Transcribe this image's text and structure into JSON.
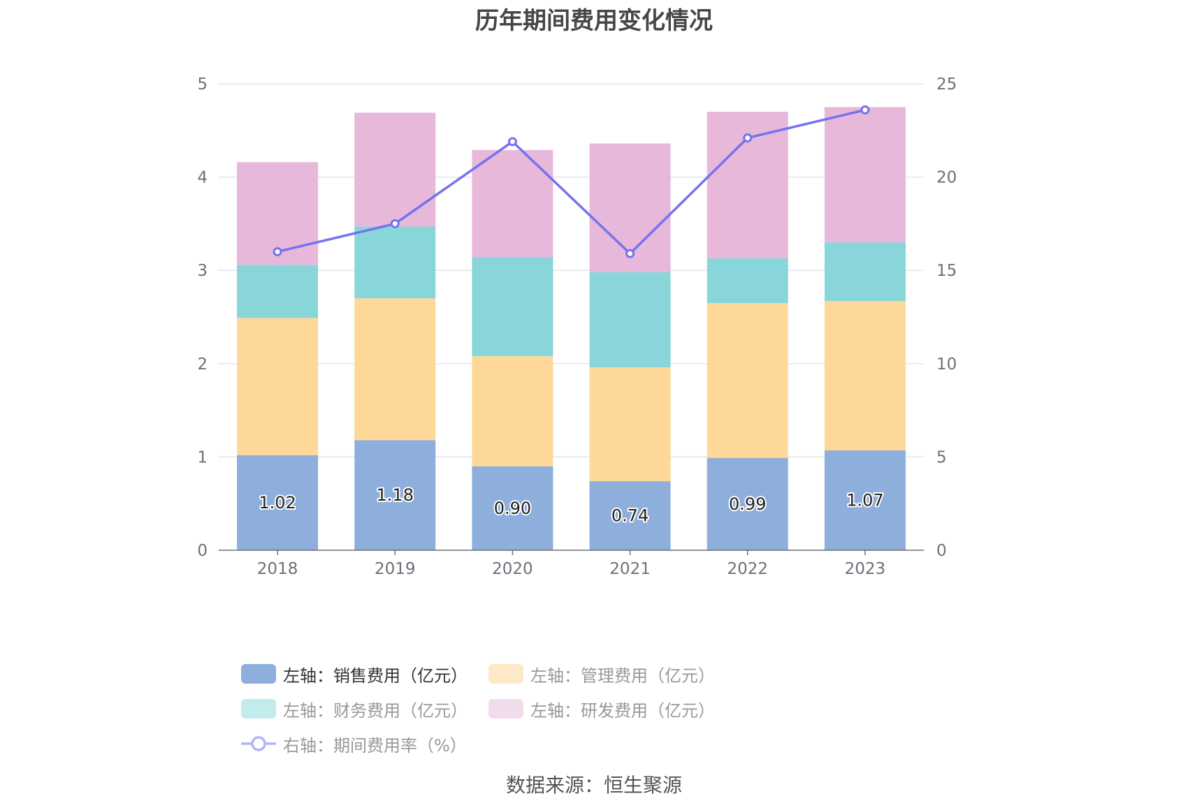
{
  "title": "历年期间费用变化情况",
  "source": "数据来源：恒生聚源",
  "colors": {
    "sales": "#8eaedc",
    "admin": "#fed899",
    "finance": "#88d6d9",
    "rnd": "#e7b8d9",
    "rate_line": "#7373f0",
    "grid": "#e0e3f3",
    "axis": "#6e7079"
  },
  "legend": [
    {
      "label": "左轴：销售费用（亿元）",
      "color": "#8eaedc",
      "faded": false,
      "kind": "box"
    },
    {
      "label": "左轴：管理费用（亿元）",
      "color": "#fde9c8",
      "faded": true,
      "kind": "box"
    },
    {
      "label": "左轴：财务费用（亿元）",
      "color": "#c2ebec",
      "faded": true,
      "kind": "box"
    },
    {
      "label": "左轴：研发费用（亿元）",
      "color": "#f1dcec",
      "faded": true,
      "kind": "box"
    },
    {
      "label": "右轴：期间费用率（%）",
      "color": "#b5b5f5",
      "faded": true,
      "kind": "line"
    }
  ],
  "chart_data": {
    "type": "bar",
    "stacked": true,
    "categories": [
      "2018",
      "2019",
      "2020",
      "2021",
      "2022",
      "2023"
    ],
    "series": [
      {
        "key": "sales",
        "name": "左轴：销售费用（亿元）",
        "axis": "left",
        "color": "#8eaedc",
        "values": [
          1.02,
          1.18,
          0.9,
          0.74,
          0.99,
          1.07
        ],
        "labels": [
          "1.02",
          "1.18",
          "0.90",
          "0.74",
          "0.99",
          "1.07"
        ]
      },
      {
        "key": "admin",
        "name": "左轴：管理费用（亿元）",
        "axis": "left",
        "color": "#fed899",
        "values": [
          1.47,
          1.52,
          1.18,
          1.22,
          1.66,
          1.6
        ]
      },
      {
        "key": "finance",
        "name": "左轴：财务费用（亿元）",
        "axis": "left",
        "color": "#88d6d9",
        "values": [
          0.57,
          0.77,
          1.06,
          1.02,
          0.48,
          0.63
        ]
      },
      {
        "key": "rnd",
        "name": "左轴：研发费用（亿元）",
        "axis": "left",
        "color": "#e7b8d9",
        "values": [
          1.1,
          1.22,
          1.15,
          1.38,
          1.57,
          1.45
        ]
      },
      {
        "key": "rate",
        "name": "右轴：期间费用率（%）",
        "axis": "right",
        "type": "line",
        "color": "#7373f0",
        "values": [
          16.0,
          17.5,
          21.9,
          15.9,
          22.1,
          23.6
        ]
      }
    ],
    "y_left": {
      "min": 0,
      "max": 5,
      "ticks": [
        "0",
        "1",
        "2",
        "3",
        "4",
        "5"
      ]
    },
    "y_right": {
      "min": 0,
      "max": 25,
      "ticks": [
        "0",
        "5",
        "10",
        "15",
        "20",
        "25"
      ]
    },
    "grid": true,
    "legend_position": "bottom"
  }
}
